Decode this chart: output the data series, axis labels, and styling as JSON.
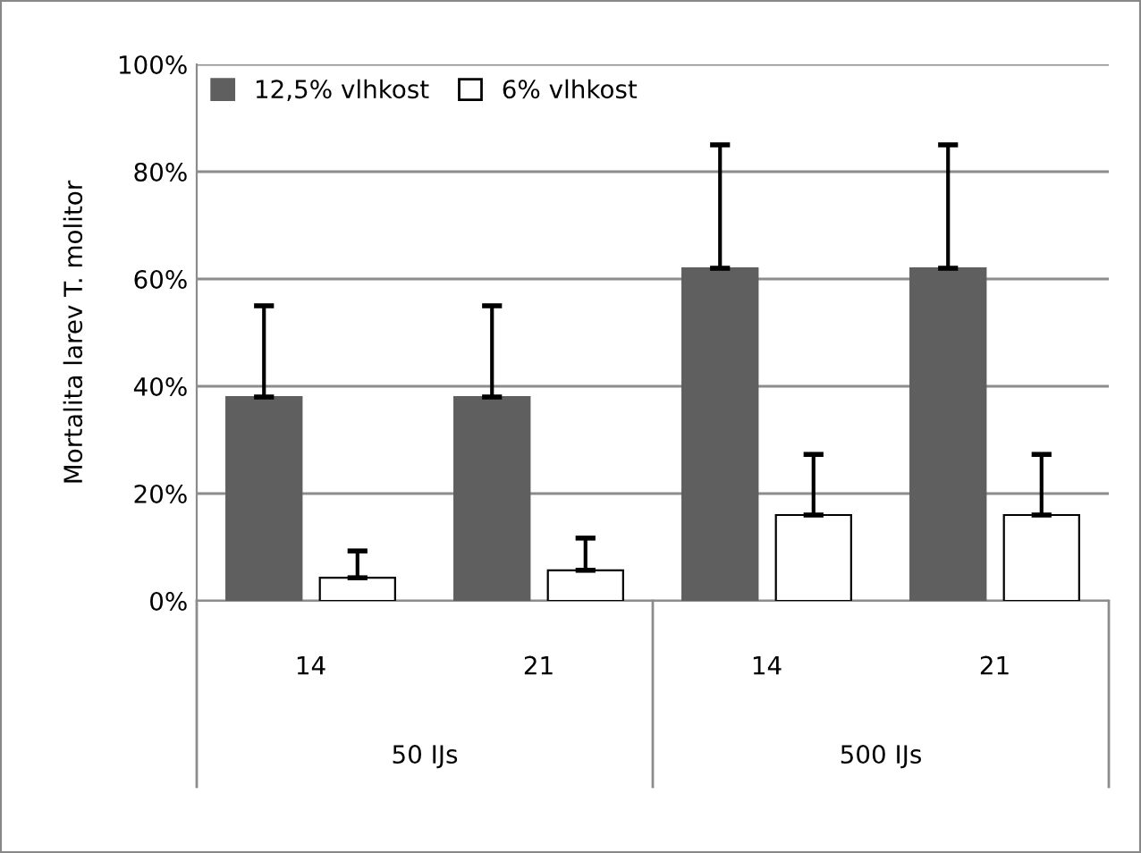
{
  "chart_data": {
    "type": "bar",
    "categories": [
      "14",
      "21",
      "14",
      "21"
    ],
    "series": [
      {
        "name": "12,5% vlhkost",
        "color": "#5f5f5f",
        "values": [
          38,
          38,
          62,
          62
        ],
        "errors": [
          [
            38,
            55
          ],
          [
            38,
            55
          ],
          [
            62,
            85
          ],
          [
            62,
            85
          ]
        ]
      },
      {
        "name": "6% vlhkost",
        "color": "#ffffff",
        "values": [
          4.3,
          5.7,
          16,
          16
        ],
        "errors": [
          [
            4.3,
            9.3
          ],
          [
            5.7,
            11.7
          ],
          [
            16,
            27.3
          ],
          [
            16,
            27.3
          ]
        ]
      }
    ],
    "ylabel": "Mortalita larev T. molitor",
    "ylim": [
      0,
      100
    ],
    "yticks": [
      {
        "value": 0,
        "label": "0%"
      },
      {
        "value": 20,
        "label": "20%"
      },
      {
        "value": 40,
        "label": "40%"
      },
      {
        "value": 60,
        "label": "60%"
      },
      {
        "value": 80,
        "label": "80%"
      },
      {
        "value": 100,
        "label": "100%"
      }
    ],
    "annotations": [
      "50 IJs",
      "500 IJs"
    ],
    "grid": "y",
    "legend": "top left"
  }
}
